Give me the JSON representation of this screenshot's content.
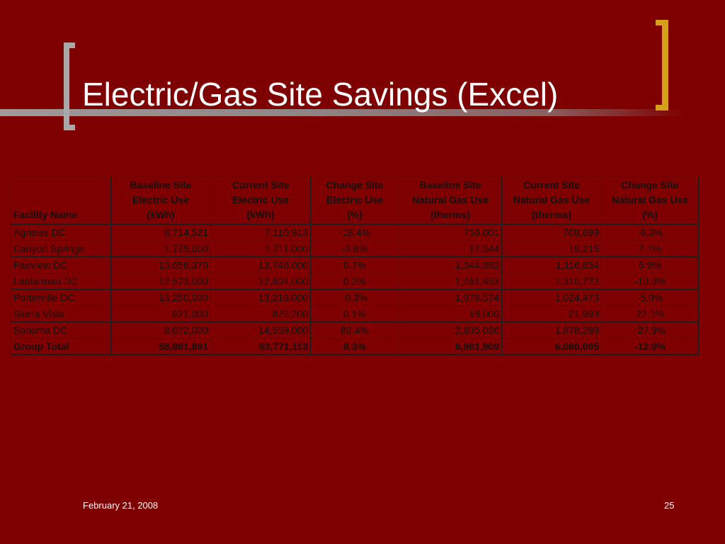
{
  "slide": {
    "title": "Electric/Gas Site Savings (Excel)",
    "date": "February 21, 2008",
    "page_number": "25"
  },
  "table": {
    "headers": [
      {
        "lines": [
          "Facility Name"
        ]
      },
      {
        "lines": [
          "Baseline Site",
          "Electric Use",
          "(kWh)"
        ]
      },
      {
        "lines": [
          "Current Site",
          "Electric Use",
          "(kWh)"
        ]
      },
      {
        "lines": [
          "Change Site",
          "Electric Use",
          "(%)"
        ]
      },
      {
        "lines": [
          "Baseline Site",
          "Natural Gas Use",
          "(therms)"
        ]
      },
      {
        "lines": [
          "Current Site",
          "Natural Gas Use",
          "(therms)"
        ]
      },
      {
        "lines": [
          "Change Site",
          "Natural Gas Use",
          "(%)"
        ]
      }
    ],
    "rows": [
      [
        "Agnews DC",
        "8,714,521",
        "7,110,913",
        "-18.4%",
        "756,001",
        "708,699",
        "-6.3%"
      ],
      [
        "Canyon Springs",
        "1,775,000",
        "1,711,000",
        "-3.6%",
        "17,944",
        "19,215",
        "7.1%"
      ],
      [
        "Fairview DC",
        "13,656,370",
        "13,748,000",
        "0.7%",
        "1,044,892",
        "1,116,654",
        "6.9%"
      ],
      [
        "Lanterman DC",
        "12,573,000",
        "12,604,000",
        "0.2%",
        "1,461,453",
        "1,310,772",
        "-10.3%"
      ],
      [
        "Porterville DC",
        "13,250,000",
        "13,216,000",
        "-0.3%",
        "1,078,574",
        "1,024,473",
        "-5.0%"
      ],
      [
        "Sierra Vista",
        "821,000",
        "822,200",
        "0.1%",
        "18,009",
        "21,993",
        "22.1%"
      ],
      [
        "Sonoma DC",
        "8,072,000",
        "14,559,000",
        "80.4%",
        "2,605,036",
        "1,878,289",
        "-27.9%"
      ]
    ],
    "total": [
      "Group Total",
      "58,861,891",
      "63,771,113",
      "8.3%",
      "6,981,909",
      "6,080,095",
      "-12.9%"
    ]
  },
  "colors": {
    "background": "#7f0000",
    "left_bracket": "#a9a9a9",
    "right_bracket": "#d4a017",
    "title_text": "#ffffff",
    "table_text": "#111111"
  }
}
